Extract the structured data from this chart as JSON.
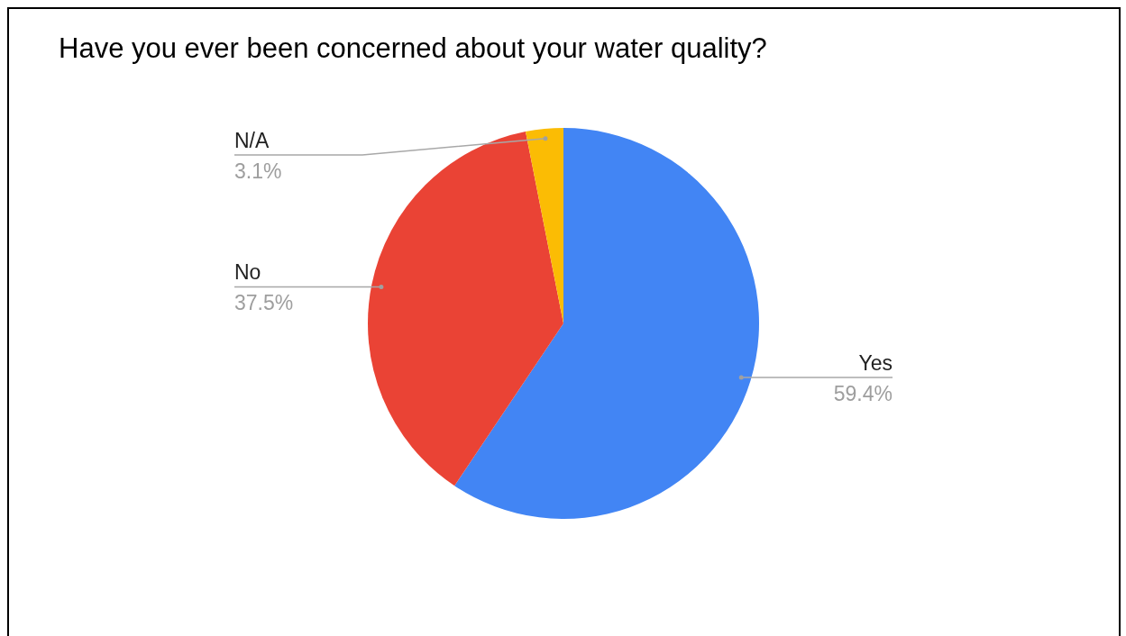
{
  "chart_data": {
    "type": "pie",
    "title": "Have you ever been concerned about your water quality?",
    "categories": [
      "Yes",
      "No",
      "N/A"
    ],
    "values": [
      59.4,
      37.5,
      3.1
    ],
    "colors": [
      "#4285f4",
      "#ea4335",
      "#fbbc04"
    ],
    "value_labels": [
      "59.4%",
      "37.5%",
      "3.1%"
    ]
  }
}
